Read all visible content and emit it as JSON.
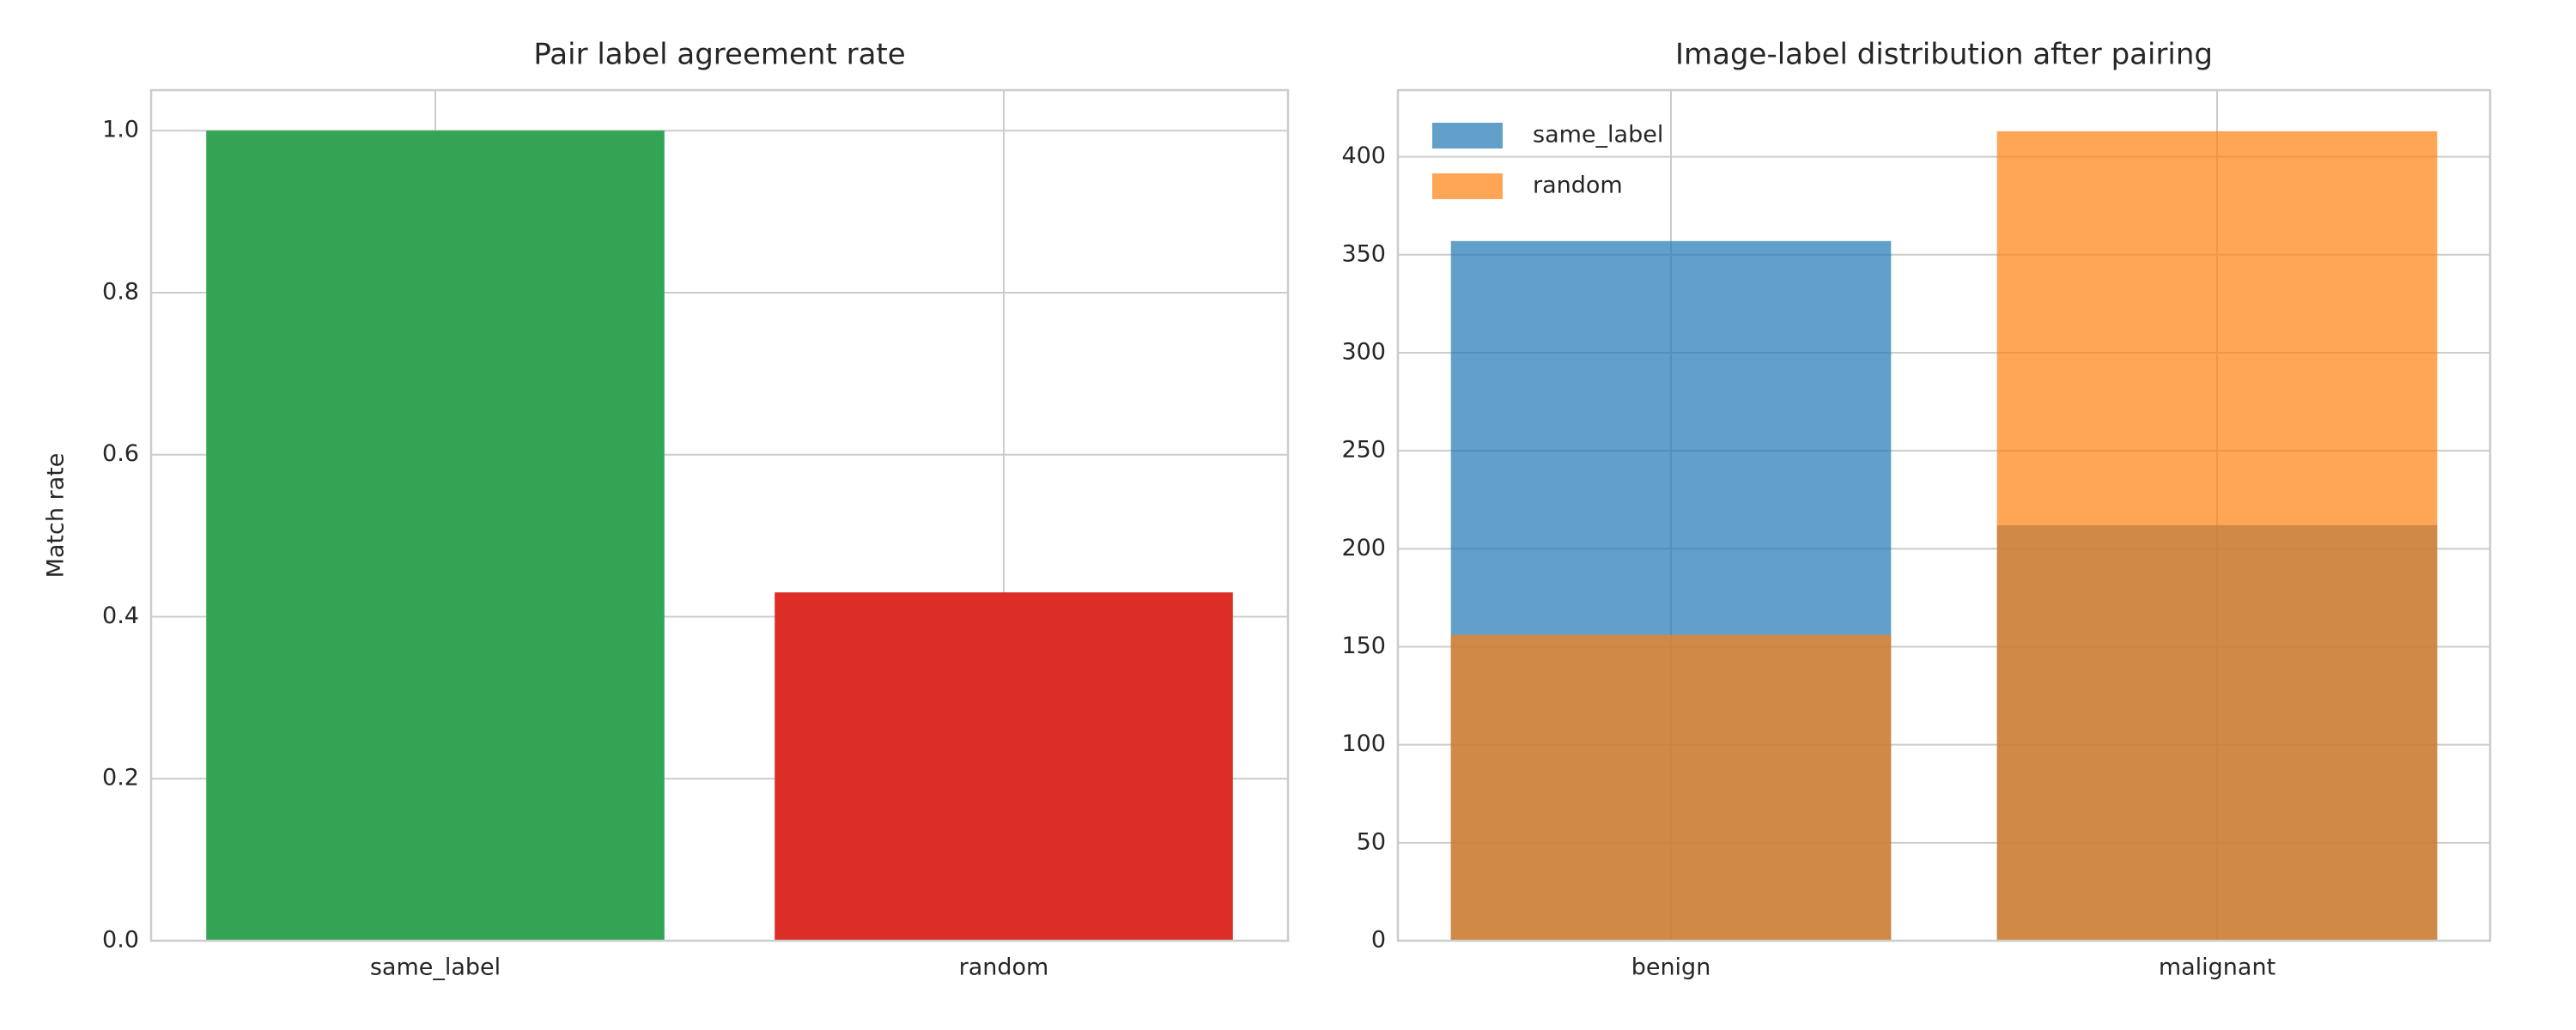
{
  "chart_data": [
    {
      "type": "bar",
      "title": "Pair label agreement rate",
      "ylabel": "Match rate",
      "categories": [
        "same_label",
        "random"
      ],
      "values": [
        1.0,
        0.43
      ],
      "colors": [
        "#33a454",
        "#dc2d27"
      ],
      "ylim": [
        0,
        1.05
      ],
      "yticks": [
        {
          "value": 0,
          "label": "0.0"
        },
        0.2,
        0.4,
        0.6,
        0.8,
        {
          "value": 1,
          "label": "1.0"
        }
      ],
      "grid": true
    },
    {
      "type": "overlap-bar",
      "title": "Image-label distribution after pairing",
      "categories": [
        "benign",
        "malignant"
      ],
      "series": [
        {
          "name": "same_label",
          "color": "#1f77b4",
          "values": [
            357,
            212
          ]
        },
        {
          "name": "random",
          "color": "#ff7f0e",
          "values": [
            156,
            413
          ]
        }
      ],
      "opacity": 0.7,
      "ylim": [
        0,
        434
      ],
      "yticks": [
        0,
        50,
        100,
        150,
        200,
        250,
        300,
        350,
        400
      ],
      "grid": true,
      "legend": "upper left"
    }
  ]
}
